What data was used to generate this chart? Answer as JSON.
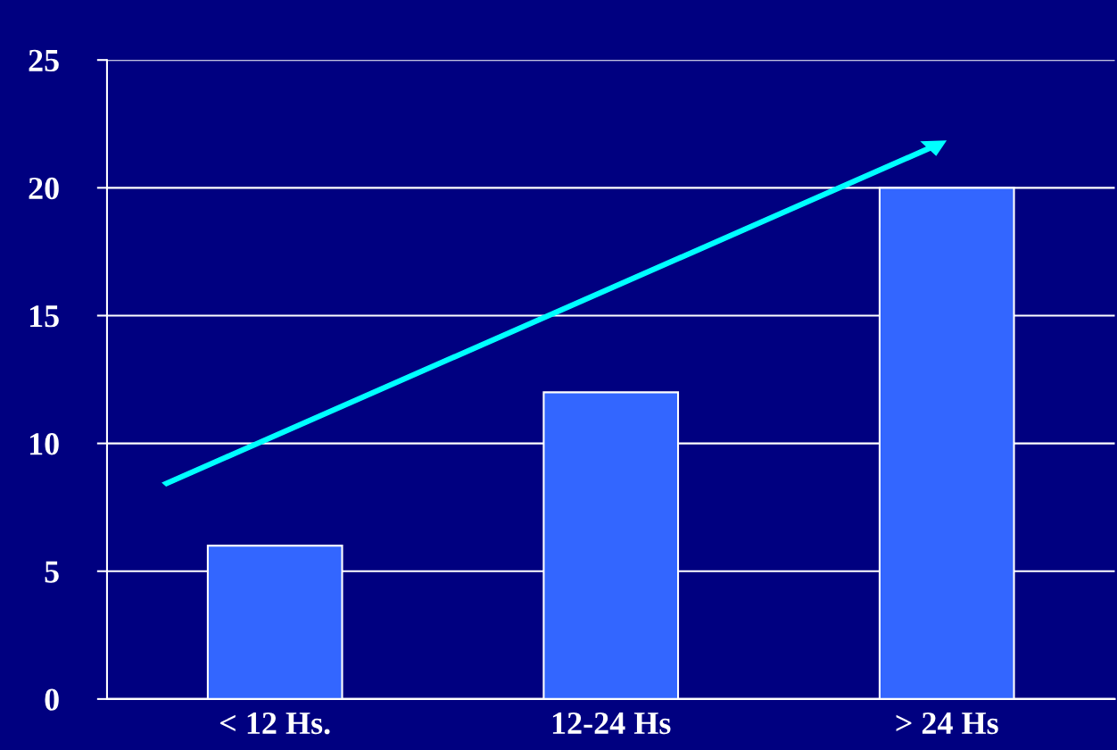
{
  "chart_data": {
    "type": "bar",
    "categories": [
      "< 12 Hs.",
      "12-24 Hs",
      "> 24 Hs"
    ],
    "values": [
      6,
      12,
      20
    ],
    "color": "#3366ff",
    "ylim": [
      0,
      25
    ],
    "yticks": [
      0,
      5,
      10,
      15,
      20,
      25
    ],
    "grid": "y",
    "legend": false
  }
}
